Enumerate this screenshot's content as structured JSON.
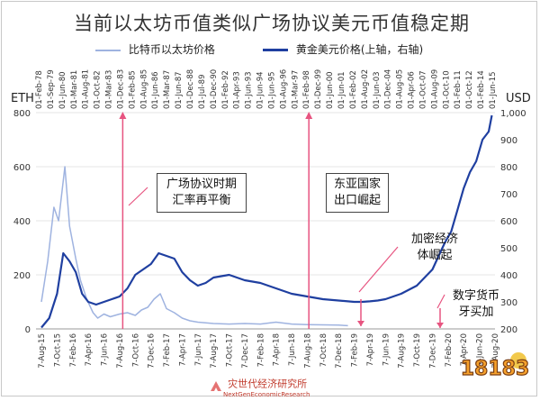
{
  "title": "当前以太坊币值类似广场协议美元币值稳定期",
  "legend": {
    "series1": "比特币以太坊价格",
    "series2": "黄金美元价格(上轴，右轴)"
  },
  "units": {
    "left": "ETH",
    "right": "USD"
  },
  "annotations": {
    "box1_line1": "广场协议时期",
    "box1_line2": "汇率再平衡",
    "box2_line1": "东亚国家",
    "box2_line2": "出口崛起",
    "box3_line1": "加密经济",
    "box3_line2": "体崛起",
    "box4_line1": "数字货币",
    "box4_line2": "牙买加"
  },
  "footer": {
    "brand_cn": "灾世代经济研究所",
    "brand_en": "NextGenEconomicResearch"
  },
  "badge_text": "18183",
  "colors": {
    "eth": "#9fb3e0",
    "gold": "#1f3fa0",
    "marker": "#e75480",
    "annot_arrow": "#e75480"
  },
  "chart_data": {
    "type": "line",
    "top_axis_ticks": [
      "01-Feb-78",
      "01-Sep-79",
      "01-Jun-80",
      "01-Mar-81",
      "01-Aug-81",
      "01-Oct-82",
      "01-Mar-83",
      "01-Dec-83",
      "01-Feb-85",
      "01-Aug-85",
      "01-Jun-86",
      "01-Mar-87",
      "01-Jun-87",
      "01-Dec-88",
      "01-Jul-89",
      "01-Dec-90",
      "01-Feb-92",
      "01-Apr-93",
      "01-Jun-93",
      "01-Jun-94",
      "01-Jun-95",
      "01-Aug-96",
      "01-Mar-97",
      "01-Feb-98",
      "01-Dec-99",
      "01-Jun-00",
      "01-Jun-01",
      "01-Feb-02",
      "01-Aug-02",
      "01-Jun-03",
      "01-Dec-04",
      "01-Aug-05",
      "01-Apr-06",
      "01-Oct-07",
      "01-Aug-09",
      "01-Oct-10",
      "01-Feb-11",
      "01-Oct-12",
      "01-Feb-14",
      "01-Jun-15"
    ],
    "bottom_axis_ticks": [
      "7-Aug-15",
      "7-Oct-15",
      "7-Feb-16",
      "7-Apr-16",
      "7-Jun-16",
      "7-Aug-16",
      "7-Oct-16",
      "7-Dec-16",
      "7-Feb-17",
      "7-Apr-17",
      "7-Jun-17",
      "7-Aug-17",
      "7-Oct-17",
      "7-Dec-17",
      "7-Feb-18",
      "7-Apr-18",
      "7-Jun-18",
      "7-Aug-18",
      "7-Oct-18",
      "7-Dec-18",
      "7-Feb-19",
      "7-Apr-19",
      "7-Jun-19",
      "7-Aug-19",
      "7-Oct-19",
      "7-Dec-19",
      "7-Feb-20",
      "7-Apr-20",
      "7-Jun-20",
      "7-Aug-20"
    ],
    "ylim_left": [
      0,
      800
    ],
    "yticks_left": [
      "0",
      "200",
      "400",
      "600",
      "800"
    ],
    "ylim_right": [
      200,
      1000
    ],
    "yticks_right": [
      "200",
      "300",
      "400",
      "500",
      "600",
      "700",
      "800",
      "900",
      "1,000"
    ],
    "series": [
      {
        "name": "比特币以太坊价格",
        "axis": "left",
        "x_index": [
          0,
          0.4,
          0.8,
          1.1,
          1.5,
          1.8,
          2.2,
          2.5,
          2.9,
          3.3,
          3.6,
          4.0,
          4.4,
          4.7,
          5.0,
          5.5,
          6.0,
          6.4,
          6.8,
          7.2,
          7.6,
          8.0,
          8.5,
          9.0,
          9.5,
          10,
          11,
          12,
          13,
          14,
          15,
          16,
          17,
          18,
          19,
          19.6
        ],
        "values": [
          100,
          250,
          450,
          400,
          600,
          380,
          260,
          180,
          110,
          60,
          40,
          55,
          45,
          50,
          55,
          60,
          50,
          70,
          80,
          110,
          130,
          75,
          60,
          40,
          30,
          25,
          20,
          18,
          20,
          18,
          25,
          18,
          16,
          15,
          14,
          12
        ]
      },
      {
        "name": "黄金美元价格(上轴，右轴)",
        "axis": "right",
        "x_index": [
          0,
          0.5,
          1,
          1.4,
          1.8,
          2.2,
          2.6,
          3,
          3.5,
          4,
          4.5,
          5,
          5.5,
          6,
          6.5,
          7,
          7.5,
          8,
          8.5,
          9,
          9.5,
          10,
          10.5,
          11,
          12,
          13,
          14,
          15,
          16,
          17,
          18,
          19,
          20,
          20.5,
          21,
          21.5,
          22,
          22.5,
          23,
          23.5,
          24,
          24.5,
          25,
          25.4,
          25.8,
          26.2,
          26.6,
          27,
          27.4,
          27.8,
          28.2,
          28.6,
          28.8
        ],
        "values": [
          205,
          240,
          330,
          480,
          450,
          410,
          330,
          300,
          290,
          300,
          310,
          320,
          350,
          400,
          420,
          440,
          480,
          470,
          460,
          410,
          380,
          360,
          370,
          390,
          400,
          380,
          370,
          350,
          330,
          320,
          310,
          305,
          300,
          300,
          302,
          305,
          310,
          320,
          330,
          345,
          360,
          390,
          420,
          470,
          520,
          560,
          640,
          720,
          780,
          820,
          900,
          930,
          990
        ]
      }
    ],
    "markers_at_bottom_index": [
      5.2,
      17.1
    ],
    "arrow_targets": [
      "7-Feb-19",
      "7-Jun-20"
    ]
  }
}
